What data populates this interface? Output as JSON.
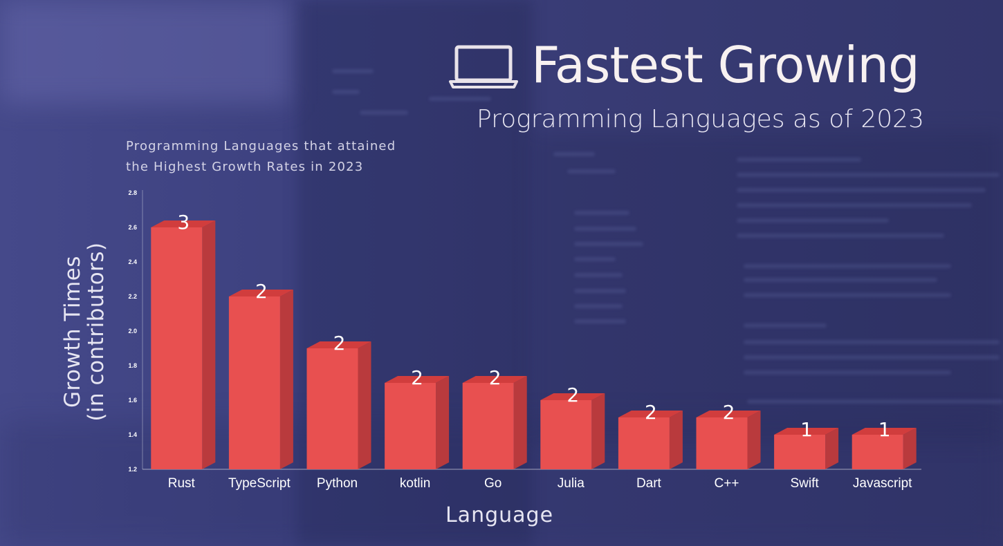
{
  "header": {
    "title": "Fastest Growing",
    "subtitle": "Programming Languages as of 2023",
    "icon": "laptop-icon"
  },
  "description": {
    "line1": "Programming Languages that attained",
    "line2": "the Highest Growth Rates in 2023"
  },
  "colors": {
    "bar_front": "#e85050",
    "bar_top": "#d13d3d",
    "bar_side": "#b93a3d",
    "background": "#3a3d78"
  },
  "chart_data": {
    "type": "bar",
    "title": "",
    "xlabel": "Language",
    "ylabel_line1": "Growth Times",
    "ylabel_line2": "(in contributors)",
    "ylim": [
      1.2,
      2.8
    ],
    "yticks": [
      "1.2",
      "1.4",
      "1.6",
      "1.8",
      "2.0",
      "2.2",
      "2.4",
      "2.6",
      "2.8"
    ],
    "categories": [
      "Rust",
      "TypeScript",
      "Python",
      "kotlin",
      "Go",
      "Julia",
      "Dart",
      "C++",
      "Swift",
      "Javascript"
    ],
    "values": [
      2.6,
      2.2,
      1.9,
      1.7,
      1.7,
      1.6,
      1.5,
      1.5,
      1.4,
      1.4
    ],
    "data_labels": [
      "3",
      "2",
      "2",
      "2",
      "2",
      "2",
      "2",
      "2",
      "1",
      "1"
    ],
    "grid": false,
    "style": "3d"
  }
}
